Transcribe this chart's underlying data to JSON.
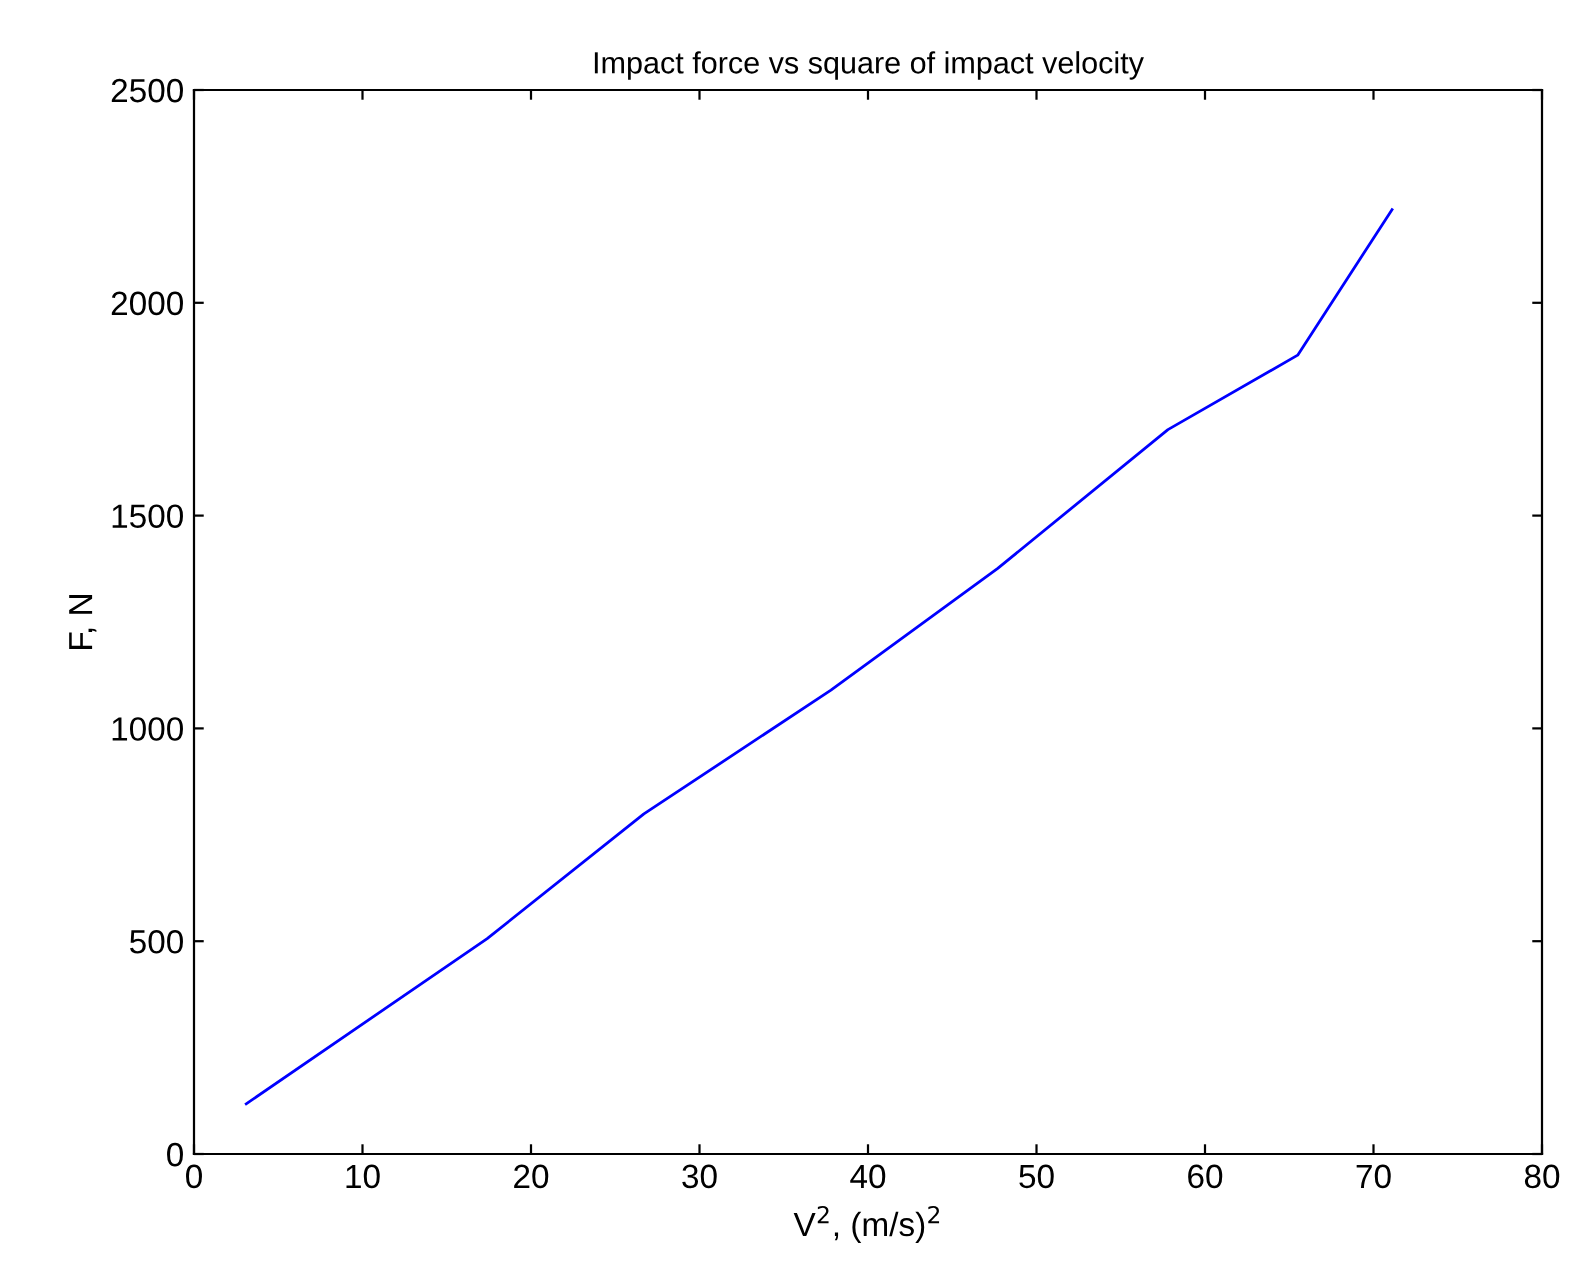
{
  "chart_data": {
    "type": "line",
    "title": "Impact force vs square of impact velocity",
    "xlabel": "V$^{2}$, (m/s)$^{2}$",
    "ylabel": "F, N",
    "x": [
      3.1,
      17.4,
      26.7,
      37.8,
      47.7,
      57.8,
      65.5,
      71.1
    ],
    "series": [
      {
        "color": "#0000ff",
        "values": [
          118,
          506,
          799,
          1090,
          1376,
          1702,
          1877,
          2219
        ]
      }
    ],
    "xlim": [
      0,
      80
    ],
    "ylim": [
      0,
      2500
    ],
    "xticks": [
      0,
      10,
      20,
      30,
      40,
      50,
      60,
      70,
      80
    ],
    "yticks": [
      0,
      500,
      1000,
      1500,
      2000,
      2500
    ],
    "grid": false,
    "legend": false,
    "marker": "none",
    "line_style": "solid"
  }
}
